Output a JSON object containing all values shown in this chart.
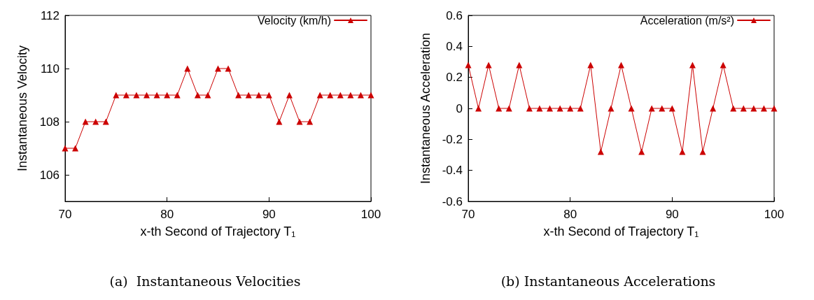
{
  "chart_data": [
    {
      "type": "line",
      "title": "(a)  Instantaneous Velocities",
      "xlabel": "x-th Second of Trajectory T₁",
      "ylabel": "Instantaneous Velocity",
      "x": [
        70,
        71,
        72,
        73,
        74,
        75,
        76,
        77,
        78,
        79,
        80,
        81,
        82,
        83,
        84,
        85,
        86,
        87,
        88,
        89,
        90,
        91,
        92,
        93,
        94,
        95,
        96,
        97,
        98,
        99,
        100
      ],
      "series": [
        {
          "name": "Velocity (km/h)",
          "color": "#cc0000",
          "values": [
            107,
            107,
            108,
            108,
            108,
            109,
            109,
            109,
            109,
            109,
            109,
            109,
            110,
            109,
            109,
            110,
            110,
            109,
            109,
            109,
            109,
            108,
            109,
            108,
            108,
            109,
            109,
            109,
            109,
            109,
            109
          ]
        }
      ],
      "xlim": [
        70,
        100
      ],
      "xticks": [
        70,
        80,
        90,
        100
      ],
      "ylim": [
        105,
        112
      ],
      "yticks": [
        106,
        108,
        110,
        112
      ],
      "grid": false,
      "legend": "top right",
      "marker": "triangle",
      "line_style": "solid"
    },
    {
      "type": "line",
      "title": "(b) Instantaneous Accelerations",
      "xlabel": "x-th Second of Trajectory T₁",
      "ylabel": "Instantaneous Acceleration",
      "x": [
        70,
        71,
        72,
        73,
        74,
        75,
        76,
        77,
        78,
        79,
        80,
        81,
        82,
        83,
        84,
        85,
        86,
        87,
        88,
        89,
        90,
        91,
        92,
        93,
        94,
        95,
        96,
        97,
        98,
        99,
        100
      ],
      "series": [
        {
          "name": "Acceleration (m/s²)",
          "color": "#cc0000",
          "values": [
            0.28,
            0,
            0.28,
            0,
            0,
            0.28,
            0,
            0,
            0,
            0,
            0,
            0,
            0.28,
            -0.28,
            0,
            0.28,
            0,
            -0.28,
            0,
            0,
            0,
            -0.28,
            0.28,
            -0.28,
            0,
            0.28,
            0,
            0,
            0,
            0,
            0
          ]
        }
      ],
      "xlim": [
        70,
        100
      ],
      "xticks": [
        70,
        80,
        90,
        100
      ],
      "ylim": [
        -0.6,
        0.6
      ],
      "yticks": [
        -0.6,
        -0.4,
        -0.2,
        0,
        0.2,
        0.4,
        0.6
      ],
      "grid": false,
      "legend": "top right",
      "marker": "triangle",
      "line_style": "solid"
    }
  ]
}
